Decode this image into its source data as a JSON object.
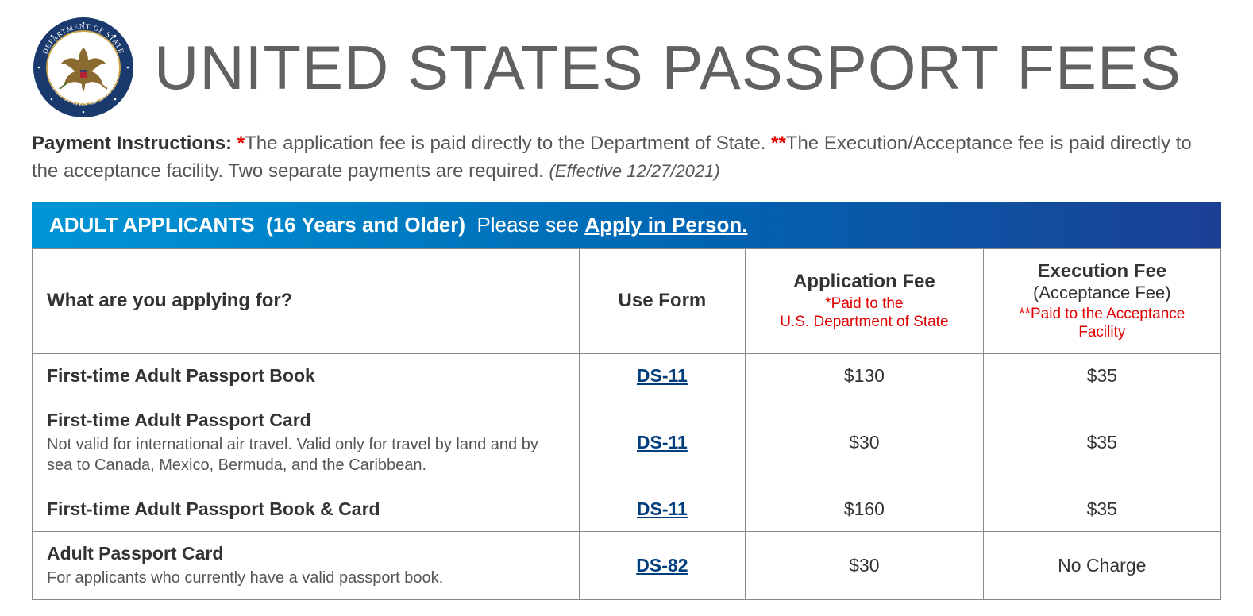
{
  "header": {
    "title": "UNITED STATES PASSPORT FEES",
    "seal_outer_color": "#1a3a6e",
    "seal_inner_color": "#ffffff",
    "seal_text_color": "#ffffff"
  },
  "instructions": {
    "label": "Payment Instructions: ",
    "part1": "The application fee is paid directly to the Department of State. ",
    "part2": "The Execution/Acceptance fee is paid directly to the acceptance facility. Two separate payments are required. ",
    "effective": "(Effective 12/27/2021)"
  },
  "section": {
    "title": "ADULT APPLICANTS",
    "qualifier": "(16 Years and Older)",
    "prompt": "Please see ",
    "link": "Apply in Person."
  },
  "columns": {
    "c1": "What are you applying for?",
    "c2": "Use Form",
    "c3": "Application Fee",
    "c3_note": "*Paid to the\nU.S. Department of State",
    "c4": "Execution Fee",
    "c4_sub": "(Acceptance Fee)",
    "c4_note": "**Paid to the Acceptance Facility"
  },
  "rows": [
    {
      "title": "First-time Adult Passport Book",
      "sub": "",
      "form": "DS-11",
      "app_fee": "$130",
      "exec_fee": "$35"
    },
    {
      "title": "First-time Adult Passport Card",
      "sub": "Not valid for international air travel. Valid only for travel by land and by sea to Canada, Mexico, Bermuda, and the Caribbean.",
      "form": "DS-11",
      "app_fee": "$30",
      "exec_fee": "$35"
    },
    {
      "title": "First-time Adult Passport Book & Card",
      "sub": "",
      "form": "DS-11",
      "app_fee": "$160",
      "exec_fee": "$35"
    },
    {
      "title": "Adult Passport Card",
      "sub": "For applicants who currently have a valid passport book.",
      "form": "DS-82",
      "app_fee": "$30",
      "exec_fee": "No Charge"
    }
  ],
  "styling": {
    "title_color": "#616161",
    "red": "#e20000",
    "bar_gradient_from": "#0096d6",
    "bar_gradient_mid": "#0066b3",
    "bar_gradient_to": "#1b3f94",
    "link_color": "#003e7e",
    "border_color": "#8a8a8a",
    "body_text": "#333333",
    "sub_text": "#555555",
    "title_fontsize": 78,
    "instruction_fontsize": 24,
    "header_fontsize": 26,
    "th_fontsize": 24,
    "row_title_fontsize": 23,
    "row_sub_fontsize": 20
  }
}
